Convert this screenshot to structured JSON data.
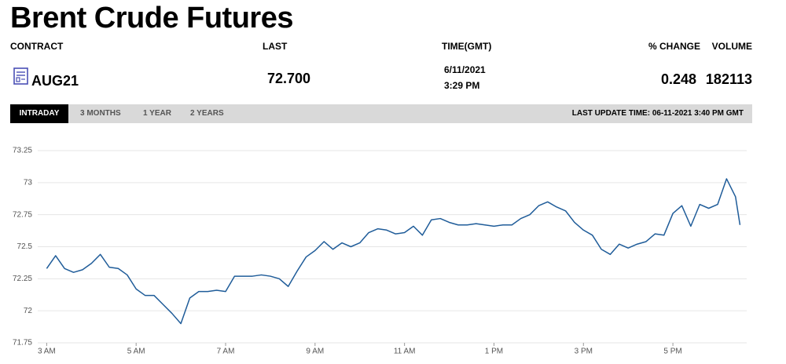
{
  "header": {
    "title": "Brent Crude Futures"
  },
  "quote": {
    "columns": [
      "CONTRACT",
      "LAST",
      "TIME(GMT)",
      "% CHANGE",
      "VOLUME"
    ],
    "contract": "AUG21",
    "last": "72.700",
    "date": "6/11/2021",
    "time": "3:29 PM",
    "change": "0.248",
    "volume": "182113"
  },
  "tabs": [
    "INTRADAY",
    "3 MONTHS",
    "1 YEAR",
    "2 YEARS"
  ],
  "last_update": "LAST UPDATE TIME: 06-11-2021 3:40 PM GMT",
  "chart_data": {
    "type": "line",
    "x": [
      3.0,
      3.2,
      3.4,
      3.6,
      3.8,
      4.0,
      4.2,
      4.4,
      4.6,
      4.8,
      5.0,
      5.2,
      5.4,
      5.6,
      5.8,
      6.0,
      6.2,
      6.4,
      6.6,
      6.8,
      7.0,
      7.2,
      7.4,
      7.6,
      7.8,
      8.0,
      8.2,
      8.4,
      8.6,
      8.8,
      9.0,
      9.2,
      9.4,
      9.6,
      9.8,
      10.0,
      10.2,
      10.4,
      10.6,
      10.8,
      11.0,
      11.2,
      11.4,
      11.6,
      11.8,
      12.0,
      12.2,
      12.4,
      12.6,
      12.8,
      13.0,
      13.2,
      13.4,
      13.6,
      13.8,
      14.0,
      14.2,
      14.4,
      14.6,
      14.8,
      15.0,
      15.2,
      15.4,
      15.6,
      15.8,
      16.0,
      16.2,
      16.4,
      16.6,
      16.8,
      17.0,
      17.2,
      17.4,
      17.6,
      17.8,
      18.0,
      18.2,
      18.4,
      18.5
    ],
    "series": [
      {
        "color": "#1f5c99",
        "values": [
          72.33,
          72.43,
          72.33,
          72.3,
          72.32,
          72.37,
          72.44,
          72.34,
          72.33,
          72.28,
          72.17,
          72.12,
          72.12,
          72.05,
          71.98,
          71.9,
          72.1,
          72.15,
          72.15,
          72.16,
          72.15,
          72.27,
          72.27,
          72.27,
          72.28,
          72.27,
          72.25,
          72.19,
          72.31,
          72.42,
          72.47,
          72.54,
          72.48,
          72.53,
          72.5,
          72.53,
          72.61,
          72.64,
          72.63,
          72.6,
          72.61,
          72.66,
          72.59,
          72.71,
          72.72,
          72.69,
          72.67,
          72.67,
          72.68,
          72.67,
          72.66,
          72.67,
          72.67,
          72.72,
          72.75,
          72.82,
          72.85,
          72.81,
          72.78,
          72.69,
          72.63,
          72.59,
          72.48,
          72.44,
          72.52,
          72.49,
          72.52,
          72.54,
          72.6,
          72.59,
          72.76,
          72.82,
          72.66,
          72.83,
          72.8,
          72.83,
          73.03,
          72.89,
          72.67
        ]
      }
    ],
    "xlim": [
      2.8,
      18.65
    ],
    "xticks": [
      {
        "value": 3,
        "label": "3 AM"
      },
      {
        "value": 5,
        "label": "5 AM"
      },
      {
        "value": 7,
        "label": "7 AM"
      },
      {
        "value": 9,
        "label": "9 AM"
      },
      {
        "value": 11,
        "label": "11 AM"
      },
      {
        "value": 13,
        "label": "1 PM"
      },
      {
        "value": 15,
        "label": "3 PM"
      },
      {
        "value": 17,
        "label": "5 PM"
      }
    ],
    "ylim": [
      71.75,
      73.25
    ],
    "yticks": [
      71.75,
      72,
      72.25,
      72.5,
      72.75,
      73,
      73.25
    ],
    "grid": true
  }
}
